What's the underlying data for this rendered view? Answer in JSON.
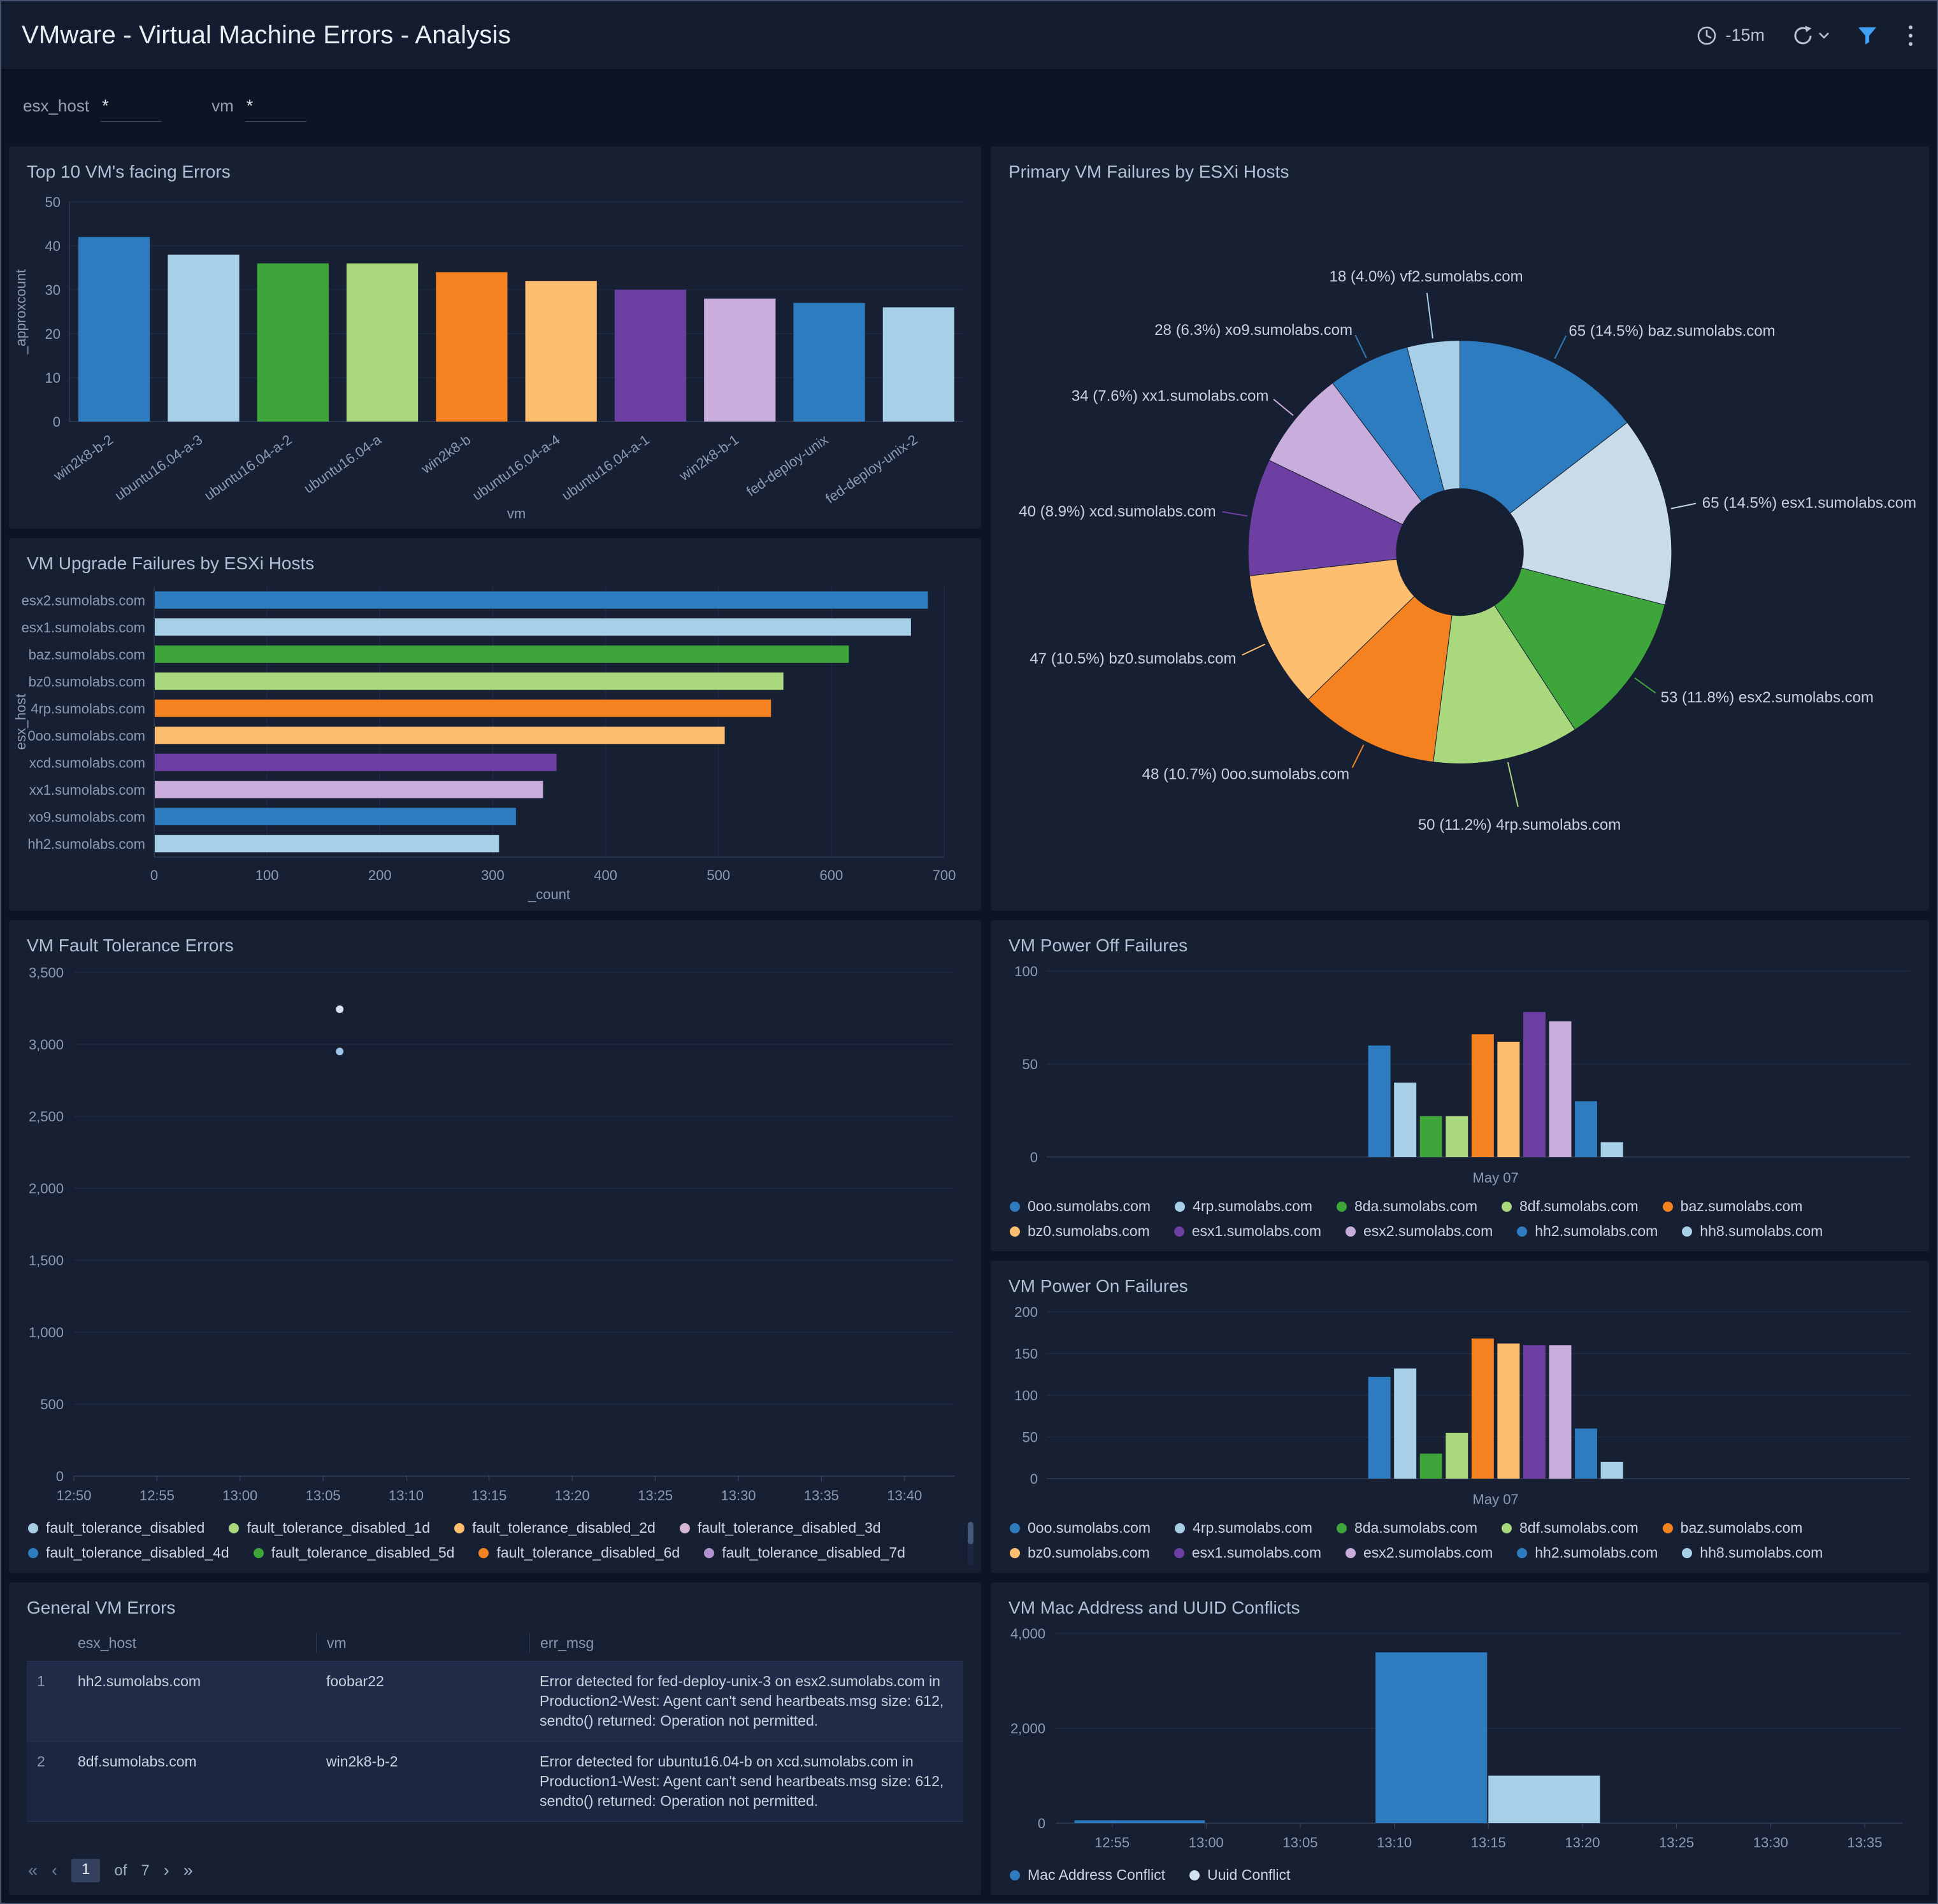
{
  "header": {
    "title": "VMware - Virtual Machine Errors - Analysis",
    "time_range": "-15m"
  },
  "filters": [
    {
      "label": "esx_host",
      "value": "*"
    },
    {
      "label": "vm",
      "value": "*"
    }
  ],
  "panels": {
    "top10": {
      "title": "Top 10 VM's facing Errors"
    },
    "pie": {
      "title": "Primary VM Failures by ESXi Hosts"
    },
    "upgrade": {
      "title": "VM Upgrade Failures by ESXi Hosts"
    },
    "fault": {
      "title": "VM Fault Tolerance Errors"
    },
    "power_off": {
      "title": "VM Power Off Failures"
    },
    "power_on": {
      "title": "VM Power On Failures"
    },
    "general": {
      "title": "General VM Errors"
    },
    "mac": {
      "title": "VM Mac Address and UUID Conflicts"
    }
  },
  "table": {
    "columns": [
      "esx_host",
      "vm",
      "err_msg"
    ],
    "rows": [
      {
        "num": "1",
        "esx_host": "hh2.sumolabs.com",
        "vm": "foobar22",
        "err_msg": "Error detected for fed-deploy-unix-3 on esx2.sumolabs.com in Production2-West: Agent can't send heartbeats.msg size: 612, sendto() returned: Operation not permitted."
      },
      {
        "num": "2",
        "esx_host": "8df.sumolabs.com",
        "vm": "win2k8-b-2",
        "err_msg": "Error detected for ubuntu16.04-b on xcd.sumolabs.com in Production1-West: Agent can't send heartbeats.msg size: 612, sendto() returned: Operation not permitted."
      }
    ],
    "pagination": {
      "first": "«",
      "prev": "‹",
      "page": "1",
      "of": "of",
      "total": "7",
      "next": "›",
      "last": "»"
    }
  },
  "colors": {
    "blue": "#2e7cc0",
    "light_blue": "#a8cfe8",
    "green": "#3da53a",
    "light_green": "#a9d97c",
    "orange": "#f58220",
    "light_orange": "#fdbf6f",
    "purple": "#6e3fa3",
    "light_purple": "#c9addc",
    "accent_filter": "#3fa2f7",
    "panel_bg": "#172033"
  },
  "chart_data": [
    {
      "id": "top10",
      "type": "bar",
      "title": "Top 10 VM's facing Errors",
      "categories": [
        "win2k8-b-2",
        "ubuntu16.04-a-3",
        "ubuntu16.04-a-2",
        "ubuntu16.04-a",
        "win2k8-b",
        "ubuntu16.04-a-4",
        "ubuntu16.04-a-1",
        "win2k8-b-1",
        "fed-deploy-unix",
        "fed-deploy-unix-2"
      ],
      "values": [
        42,
        38,
        36,
        36,
        34,
        32,
        30,
        28,
        27,
        26
      ],
      "colors": [
        "#2e7cc0",
        "#a8cfe8",
        "#3da53a",
        "#a9d97c",
        "#f58220",
        "#fdbf6f",
        "#6e3fa3",
        "#c9addc",
        "#2e7cc0",
        "#a8cfe8"
      ],
      "xlabel": "vm",
      "ylabel": "_approxcount",
      "ylim": [
        0,
        50
      ],
      "yticks": [
        0,
        10,
        20,
        30,
        40,
        50
      ]
    },
    {
      "id": "pie",
      "type": "pie",
      "title": "Primary VM Failures by ESXi Hosts",
      "slices": [
        {
          "name": "baz.sumolabs.com",
          "value": 65,
          "pct": "14.5",
          "color": "#2e7cc0",
          "label": "65 (14.5%) baz.sumolabs.com"
        },
        {
          "name": "esx1.sumolabs.com",
          "value": 65,
          "pct": "14.5",
          "color": "#c9dbe8",
          "label": "65 (14.5%) esx1.sumolabs.com"
        },
        {
          "name": "esx2.sumolabs.com",
          "value": 53,
          "pct": "11.8",
          "color": "#3da53a",
          "label": "53 (11.8%) esx2.sumolabs.com"
        },
        {
          "name": "4rp.sumolabs.com",
          "value": 50,
          "pct": "11.2",
          "color": "#a9d97c",
          "label": "50 (11.2%) 4rp.sumolabs.com"
        },
        {
          "name": "0oo.sumolabs.com",
          "value": 48,
          "pct": "10.7",
          "color": "#f58220",
          "label": "48 (10.7%) 0oo.sumolabs.com"
        },
        {
          "name": "bz0.sumolabs.com",
          "value": 47,
          "pct": "10.5",
          "color": "#fdbf6f",
          "label": "47 (10.5%) bz0.sumolabs.com"
        },
        {
          "name": "xcd.sumolabs.com",
          "value": 40,
          "pct": "8.9",
          "color": "#6e3fa3",
          "label": "40 (8.9%) xcd.sumolabs.com"
        },
        {
          "name": "xx1.sumolabs.com",
          "value": 34,
          "pct": "7.6",
          "color": "#c9addc",
          "label": "34 (7.6%) xx1.sumolabs.com"
        },
        {
          "name": "xo9.sumolabs.com",
          "value": 28,
          "pct": "6.3",
          "color": "#2e7cc0",
          "label": "28 (6.3%) xo9.sumolabs.com"
        },
        {
          "name": "vf2.sumolabs.com",
          "value": 18,
          "pct": "4.0",
          "color": "#a8cfe8",
          "label": "18 (4.0%) vf2.sumolabs.com"
        }
      ]
    },
    {
      "id": "upgrade",
      "type": "hbar",
      "title": "VM Upgrade Failures by ESXi Hosts",
      "categories": [
        "esx2.sumolabs.com",
        "esx1.sumolabs.com",
        "baz.sumolabs.com",
        "bz0.sumolabs.com",
        "4rp.sumolabs.com",
        "0oo.sumolabs.com",
        "xcd.sumolabs.com",
        "xx1.sumolabs.com",
        "xo9.sumolabs.com",
        "hh2.sumolabs.com"
      ],
      "values": [
        685,
        670,
        615,
        557,
        546,
        505,
        356,
        344,
        320,
        305
      ],
      "colors": [
        "#2e7cc0",
        "#a8cfe8",
        "#3da53a",
        "#a9d97c",
        "#f58220",
        "#fdbf6f",
        "#6e3fa3",
        "#c9addc",
        "#2e7cc0",
        "#a8cfe8"
      ],
      "xlabel": "_count",
      "ylabel": "esx_host",
      "xlim": [
        0,
        700
      ],
      "xticks": [
        0,
        100,
        200,
        300,
        400,
        500,
        600,
        700
      ]
    },
    {
      "id": "fault",
      "type": "scatter",
      "title": "VM Fault Tolerance Errors",
      "xticks": [
        "12:50",
        "12:55",
        "13:00",
        "13:05",
        "13:10",
        "13:15",
        "13:20",
        "13:25",
        "13:30",
        "13:35",
        "13:40"
      ],
      "ylim": [
        0,
        3500
      ],
      "yticks": [
        0,
        500,
        1000,
        1500,
        2000,
        2500,
        3000,
        3500
      ],
      "points": [
        {
          "x": "13:06",
          "y": 3244,
          "color": "#dbe5ef"
        },
        {
          "x": "13:06",
          "y": 2950,
          "color": "#9fc6e8"
        }
      ],
      "legend": [
        {
          "label": "fault_tolerance_disabled",
          "color": "#a8cfe8"
        },
        {
          "label": "fault_tolerance_disabled_1d",
          "color": "#a9d97c"
        },
        {
          "label": "fault_tolerance_disabled_2d",
          "color": "#fdbf6f"
        },
        {
          "label": "fault_tolerance_disabled_3d",
          "color": "#d9b6d8"
        },
        {
          "label": "fault_tolerance_disabled_4d",
          "color": "#2e7cc0"
        },
        {
          "label": "fault_tolerance_disabled_5d",
          "color": "#3da53a"
        },
        {
          "label": "fault_tolerance_disabled_6d",
          "color": "#f58220"
        },
        {
          "label": "fault_tolerance_disabled_7d",
          "color": "#b293cf"
        }
      ]
    },
    {
      "id": "power_off",
      "type": "cluster",
      "title": "VM Power Off Failures",
      "ylim": [
        0,
        100
      ],
      "yticks": [
        0,
        50,
        100
      ],
      "xtick": "May 07",
      "series": [
        {
          "name": "0oo.sumolabs.com",
          "value": 60,
          "color": "#2e7cc0"
        },
        {
          "name": "4rp.sumolabs.com",
          "value": 40,
          "color": "#a8cfe8"
        },
        {
          "name": "8da.sumolabs.com",
          "value": 22,
          "color": "#3da53a"
        },
        {
          "name": "8df.sumolabs.com",
          "value": 22,
          "color": "#a9d97c"
        },
        {
          "name": "baz.sumolabs.com",
          "value": 66,
          "color": "#f58220"
        },
        {
          "name": "bz0.sumolabs.com",
          "value": 62,
          "color": "#fdbf6f"
        },
        {
          "name": "esx1.sumolabs.com",
          "value": 78,
          "color": "#6e3fa3"
        },
        {
          "name": "esx2.sumolabs.com",
          "value": 73,
          "color": "#c9addc"
        },
        {
          "name": "hh2.sumolabs.com",
          "value": 30,
          "color": "#2e7cc0"
        },
        {
          "name": "hh8.sumolabs.com",
          "value": 8,
          "color": "#a8cfe8"
        }
      ],
      "legend": [
        {
          "label": "0oo.sumolabs.com",
          "color": "#2e7cc0"
        },
        {
          "label": "4rp.sumolabs.com",
          "color": "#a8cfe8"
        },
        {
          "label": "8da.sumolabs.com",
          "color": "#3da53a"
        },
        {
          "label": "8df.sumolabs.com",
          "color": "#a9d97c"
        },
        {
          "label": "baz.sumolabs.com",
          "color": "#f58220"
        },
        {
          "label": "bz0.sumolabs.com",
          "color": "#fdbf6f"
        },
        {
          "label": "esx1.sumolabs.com",
          "color": "#6e3fa3"
        },
        {
          "label": "esx2.sumolabs.com",
          "color": "#c9addc"
        },
        {
          "label": "hh2.sumolabs.com",
          "color": "#2e7cc0"
        },
        {
          "label": "hh8.sumolabs.com",
          "color": "#a8cfe8"
        }
      ]
    },
    {
      "id": "power_on",
      "type": "cluster",
      "title": "VM Power On Failures",
      "ylim": [
        0,
        200
      ],
      "yticks": [
        0,
        50,
        100,
        150,
        200
      ],
      "xtick": "May 07",
      "series": [
        {
          "name": "0oo.sumolabs.com",
          "value": 122,
          "color": "#2e7cc0"
        },
        {
          "name": "4rp.sumolabs.com",
          "value": 132,
          "color": "#a8cfe8"
        },
        {
          "name": "8da.sumolabs.com",
          "value": 30,
          "color": "#3da53a"
        },
        {
          "name": "8df.sumolabs.com",
          "value": 55,
          "color": "#a9d97c"
        },
        {
          "name": "baz.sumolabs.com",
          "value": 168,
          "color": "#f58220"
        },
        {
          "name": "bz0.sumolabs.com",
          "value": 162,
          "color": "#fdbf6f"
        },
        {
          "name": "esx1.sumolabs.com",
          "value": 160,
          "color": "#6e3fa3"
        },
        {
          "name": "esx2.sumolabs.com",
          "value": 160,
          "color": "#c9addc"
        },
        {
          "name": "hh2.sumolabs.com",
          "value": 60,
          "color": "#2e7cc0"
        },
        {
          "name": "hh8.sumolabs.com",
          "value": 20,
          "color": "#a8cfe8"
        }
      ],
      "legend": [
        {
          "label": "0oo.sumolabs.com",
          "color": "#2e7cc0"
        },
        {
          "label": "4rp.sumolabs.com",
          "color": "#a8cfe8"
        },
        {
          "label": "8da.sumolabs.com",
          "color": "#3da53a"
        },
        {
          "label": "8df.sumolabs.com",
          "color": "#a9d97c"
        },
        {
          "label": "baz.sumolabs.com",
          "color": "#f58220"
        },
        {
          "label": "bz0.sumolabs.com",
          "color": "#fdbf6f"
        },
        {
          "label": "esx1.sumolabs.com",
          "color": "#6e3fa3"
        },
        {
          "label": "esx2.sumolabs.com",
          "color": "#c9addc"
        },
        {
          "label": "hh2.sumolabs.com",
          "color": "#2e7cc0"
        },
        {
          "label": "hh8.sumolabs.com",
          "color": "#a8cfe8"
        }
      ]
    },
    {
      "id": "mac",
      "type": "timebar",
      "title": "VM Mac Address and UUID Conflicts",
      "ylim": [
        0,
        4000
      ],
      "yticks": [
        0,
        2000,
        4000
      ],
      "xlim": [
        "12:52",
        "13:37"
      ],
      "xticks": [
        "12:55",
        "13:00",
        "13:05",
        "13:10",
        "13:15",
        "13:20",
        "13:25",
        "13:30",
        "13:35"
      ],
      "bars": [
        {
          "series": "Mac Address Conflict",
          "start": "12:53",
          "end": "13:00",
          "value": 60,
          "color": "#2e7cc0"
        },
        {
          "series": "Mac Address Conflict",
          "start": "13:09",
          "end": "13:15",
          "value": 3600,
          "color": "#2e7cc0"
        },
        {
          "series": "Uuid Conflict",
          "start": "13:15",
          "end": "13:21",
          "value": 1000,
          "color": "#a8cfe8"
        }
      ],
      "legend": [
        {
          "label": "Mac Address Conflict",
          "color": "#2e7cc0"
        },
        {
          "label": "Uuid Conflict",
          "color": "#cfe0ee"
        }
      ]
    }
  ]
}
